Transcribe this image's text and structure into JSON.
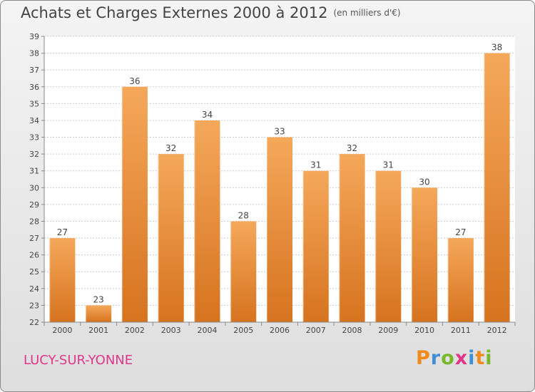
{
  "title": "Achats et Charges Externes 2000 à 2012",
  "unit": "(en milliers d'€)",
  "commune": "LUCY-SUR-YONNE",
  "logo": {
    "text": "Proxiti",
    "letter_colors": [
      "#f08a1c",
      "#3f8fd6",
      "#77b82d",
      "#e0378a",
      "#3f8fd6",
      "#f08a1c",
      "#77b82d"
    ]
  },
  "colors": {
    "bar_light": "#f5a85a",
    "bar_dark": "#d6731f",
    "grid": "#cccccc",
    "axis": "#888888",
    "text": "#444444"
  },
  "chart_data": {
    "type": "bar",
    "categories": [
      "2000",
      "2001",
      "2002",
      "2003",
      "2004",
      "2005",
      "2006",
      "2007",
      "2008",
      "2009",
      "2010",
      "2011",
      "2012"
    ],
    "values": [
      27,
      23,
      36,
      32,
      34,
      28,
      33,
      31,
      32,
      31,
      30,
      27,
      38
    ],
    "ylim": [
      22,
      39
    ],
    "yticks": [
      "22",
      "23",
      "24",
      "25",
      "26",
      "27",
      "28",
      "29",
      "30",
      "31",
      "32",
      "33",
      "34",
      "35",
      "36",
      "37",
      "38",
      "39"
    ],
    "grid": true,
    "data_labels": true
  }
}
